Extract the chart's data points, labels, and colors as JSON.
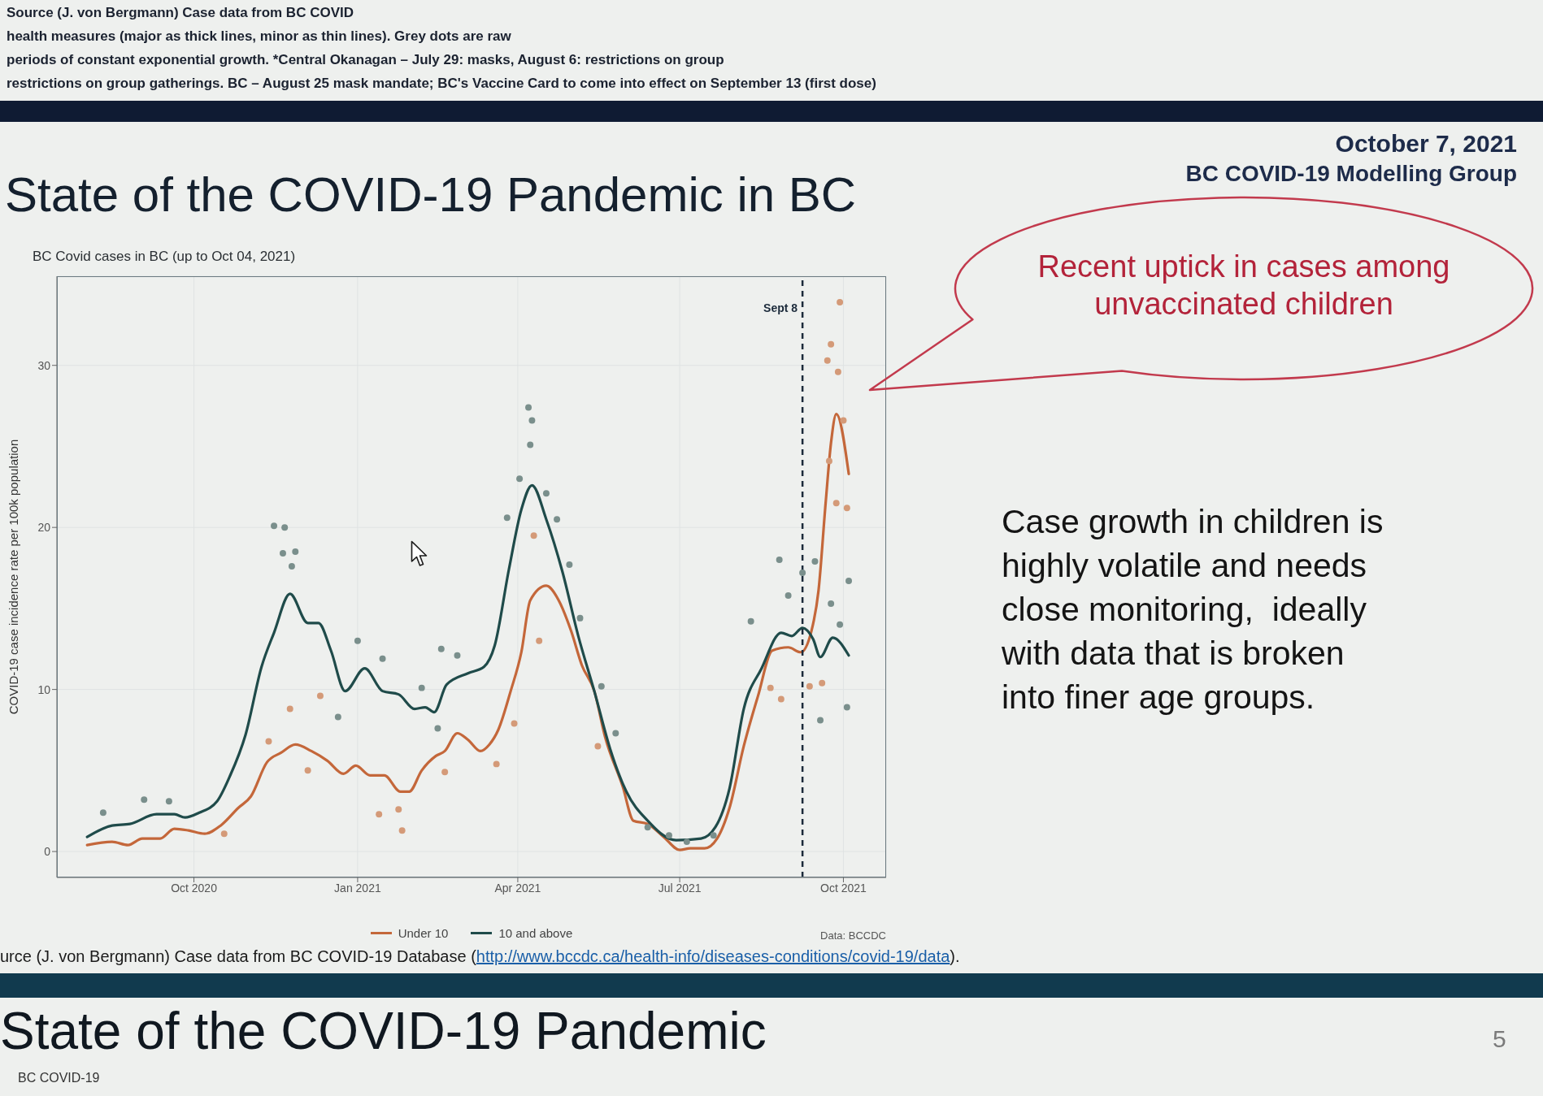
{
  "chart_data": {
    "type": "line",
    "title": "State of the COVID-19 Pandemic in BC",
    "subtitle": "BC Covid cases in BC (up to Oct 04, 2021)",
    "ylabel": "COVID-19 case incidence rate per 100k population",
    "annotations": [
      "Source (J. von Bergmann) Case data from BC COVID",
      "health measures (major as thick lines, minor as thin lines). Grey dots are raw",
      "periods of constant exponential growth. *Central Okanagan – July 29: masks, August 6: restrictions on group",
      "restrictions on group gatherings. BC – August 25 mask mandate; BC's Vaccine Card to come into effect on September 13 (first dose)",
      "October 7, 2021",
      "BC COVID-19 Modelling Group",
      "Recent uptick in cases among unvaccinated children",
      "Case growth in children is highly volatile and needs close monitoring,  ideally with data that is broken into finer age groups.",
      "Data: BCCDC",
      "urce (J. von Bergmann) Case data from BC COVID-19 Database (http://www.bccdc.ca/health-info/diseases-conditions/covid-19/data).",
      "5",
      "State of the COVID-19 Pandemic",
      "BC COVID-19"
    ],
    "xlim": [
      "2020-07-16",
      "2021-10-25"
    ],
    "xticks": [
      {
        "value": "2020-10-01",
        "label": "Oct 2020"
      },
      {
        "value": "2021-01-01",
        "label": "Jan 2021"
      },
      {
        "value": "2021-04-01",
        "label": "Apr 2021"
      },
      {
        "value": "2021-07-01",
        "label": "Jul 2021"
      },
      {
        "value": "2021-10-01",
        "label": "Oct 2021"
      }
    ],
    "ylim": [
      -1.6,
      35.5
    ],
    "yticks": [
      0,
      10,
      20,
      30
    ],
    "grid": true,
    "legend": "bottom",
    "ref_lines": [
      {
        "axis": "x",
        "value": "2021-09-08",
        "label": "Sept 8",
        "line_style": "dashed",
        "color": "#1b2a3a"
      }
    ],
    "series": [
      {
        "type": "scatter",
        "color": "#7a8f8c",
        "marker": "circle",
        "x": [
          "2020-08-11",
          "2020-09-03",
          "2020-09-17",
          "2020-11-15",
          "2020-11-20",
          "2020-11-21",
          "2020-11-25",
          "2020-11-27",
          "2020-12-21",
          "2021-01-01",
          "2021-01-15",
          "2021-02-06",
          "2021-02-15",
          "2021-02-17",
          "2021-02-26",
          "2021-03-26",
          "2021-04-02",
          "2021-04-07",
          "2021-04-08",
          "2021-04-09",
          "2021-04-17",
          "2021-04-23",
          "2021-04-30",
          "2021-05-06",
          "2021-05-18",
          "2021-05-26",
          "2021-06-13",
          "2021-06-25",
          "2021-07-05",
          "2021-07-20",
          "2021-08-10",
          "2021-08-26",
          "2021-08-31",
          "2021-09-08",
          "2021-09-15",
          "2021-09-18",
          "2021-09-24",
          "2021-09-29",
          "2021-10-03",
          "2021-10-04"
        ],
        "values": [
          2.4,
          3.2,
          3.1,
          20.1,
          18.4,
          20.0,
          17.6,
          18.5,
          8.3,
          13.0,
          11.9,
          10.1,
          7.6,
          12.5,
          12.1,
          20.6,
          23.0,
          27.4,
          25.1,
          26.6,
          22.1,
          20.5,
          17.7,
          14.4,
          10.2,
          7.3,
          1.5,
          1.0,
          0.6,
          1.0,
          14.2,
          18.0,
          15.8,
          17.2,
          17.9,
          8.1,
          15.3,
          14.0,
          8.9,
          16.7
        ]
      },
      {
        "type": "scatter",
        "color": "#d49a78",
        "marker": "circle",
        "x": [
          "2020-10-18",
          "2020-11-12",
          "2020-11-24",
          "2020-12-04",
          "2020-12-11",
          "2021-01-13",
          "2021-01-24",
          "2021-01-26",
          "2021-02-19",
          "2021-03-20",
          "2021-03-30",
          "2021-04-10",
          "2021-04-13",
          "2021-05-16",
          "2021-08-21",
          "2021-08-27",
          "2021-09-12",
          "2021-09-19",
          "2021-09-22",
          "2021-09-23",
          "2021-09-24",
          "2021-09-27",
          "2021-09-28",
          "2021-09-29",
          "2021-10-01",
          "2021-10-03"
        ],
        "values": [
          1.1,
          6.8,
          8.8,
          5.0,
          9.6,
          2.3,
          2.6,
          1.3,
          4.9,
          5.4,
          7.9,
          19.5,
          13.0,
          6.5,
          10.1,
          9.4,
          10.2,
          10.4,
          30.3,
          24.1,
          31.3,
          21.5,
          29.6,
          33.9,
          26.6,
          21.2
        ]
      },
      {
        "name": "Under 10",
        "type": "line",
        "color": "#c4673a",
        "x": [
          "2020-08-02",
          "2020-08-16",
          "2020-08-25",
          "2020-09-02",
          "2020-09-12",
          "2020-09-20",
          "2020-09-28",
          "2020-10-07",
          "2020-10-16",
          "2020-10-26",
          "2020-11-02",
          "2020-11-11",
          "2020-11-19",
          "2020-11-27",
          "2020-12-06",
          "2020-12-15",
          "2020-12-24",
          "2020-12-31",
          "2021-01-08",
          "2021-01-16",
          "2021-01-25",
          "2021-01-30",
          "2021-02-06",
          "2021-02-14",
          "2021-02-19",
          "2021-02-26",
          "2021-03-04",
          "2021-03-11",
          "2021-03-16",
          "2021-03-21",
          "2021-03-28",
          "2021-04-03",
          "2021-04-08",
          "2021-04-17",
          "2021-04-24",
          "2021-05-01",
          "2021-05-07",
          "2021-05-14",
          "2021-05-20",
          "2021-05-30",
          "2021-06-05",
          "2021-06-13",
          "2021-06-22",
          "2021-07-01",
          "2021-07-07",
          "2021-07-15",
          "2021-07-22",
          "2021-07-29",
          "2021-08-06",
          "2021-08-14",
          "2021-08-22",
          "2021-08-31",
          "2021-09-07",
          "2021-09-13",
          "2021-09-17",
          "2021-09-21",
          "2021-09-24",
          "2021-09-27",
          "2021-10-04"
        ],
        "values": [
          0.4,
          0.6,
          0.4,
          0.8,
          0.8,
          1.4,
          1.3,
          1.1,
          1.6,
          2.7,
          3.4,
          5.5,
          6.1,
          6.6,
          6.2,
          5.6,
          4.8,
          5.3,
          4.7,
          4.7,
          3.7,
          3.7,
          5.0,
          5.9,
          6.2,
          7.3,
          6.9,
          6.2,
          6.6,
          7.5,
          9.9,
          12.3,
          15.5,
          16.4,
          15.5,
          13.6,
          11.5,
          9.9,
          7.1,
          4.0,
          1.9,
          1.7,
          0.9,
          0.1,
          0.2,
          0.2,
          0.8,
          2.7,
          6.5,
          9.6,
          12.4,
          12.6,
          12.3,
          13.6,
          16.1,
          21.5,
          25.2,
          27.0,
          23.3
        ]
      },
      {
        "name": "10 and above",
        "type": "line",
        "color": "#1f4b4a",
        "x": [
          "2020-08-02",
          "2020-08-16",
          "2020-08-26",
          "2020-09-10",
          "2020-09-20",
          "2020-09-26",
          "2020-10-04",
          "2020-10-14",
          "2020-10-21",
          "2020-10-30",
          "2020-11-08",
          "2020-11-15",
          "2020-11-24",
          "2020-12-04",
          "2020-12-10",
          "2020-12-17",
          "2020-12-25",
          "2021-01-05",
          "2021-01-15",
          "2021-01-24",
          "2021-02-02",
          "2021-02-08",
          "2021-02-13",
          "2021-02-20",
          "2021-03-04",
          "2021-03-13",
          "2021-03-19",
          "2021-03-27",
          "2021-04-03",
          "2021-04-09",
          "2021-04-17",
          "2021-04-26",
          "2021-05-05",
          "2021-05-14",
          "2021-05-23",
          "2021-06-01",
          "2021-06-13",
          "2021-06-29",
          "2021-07-13",
          "2021-07-21",
          "2021-07-29",
          "2021-08-06",
          "2021-08-16",
          "2021-08-27",
          "2021-09-02",
          "2021-09-08",
          "2021-09-14",
          "2021-09-18",
          "2021-09-25",
          "2021-10-04"
        ],
        "values": [
          0.9,
          1.6,
          1.7,
          2.3,
          2.3,
          2.1,
          2.4,
          3.1,
          4.6,
          7.2,
          11.4,
          13.5,
          15.9,
          14.1,
          14.1,
          12.4,
          9.9,
          11.3,
          9.9,
          9.7,
          8.8,
          8.9,
          8.6,
          10.3,
          11.0,
          11.4,
          12.7,
          17.4,
          21.1,
          22.6,
          20.5,
          17.3,
          13.3,
          9.9,
          6.3,
          3.7,
          1.9,
          0.7,
          0.8,
          1.5,
          3.9,
          8.8,
          11.3,
          13.5,
          13.3,
          13.8,
          13.1,
          12.0,
          13.2,
          12.1
        ]
      }
    ]
  }
}
